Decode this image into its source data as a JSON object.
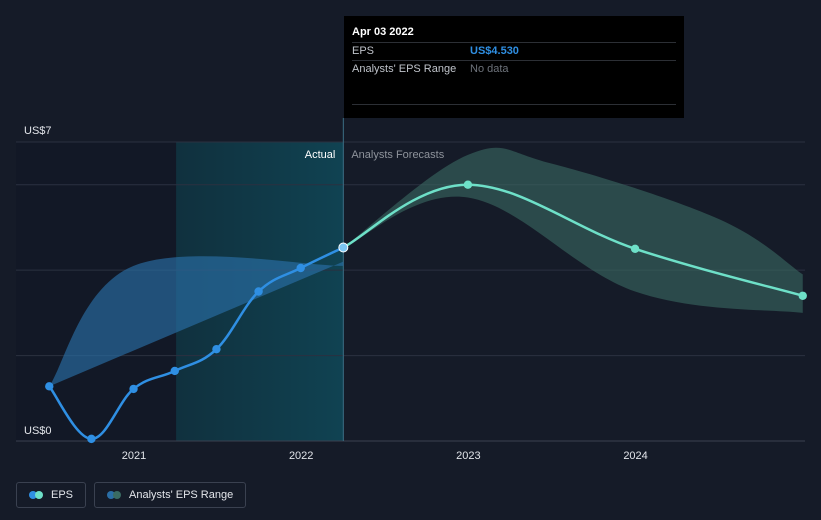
{
  "chart_data": {
    "type": "line",
    "y_axis": {
      "label_top": "US$7",
      "label_bottom": "US$0",
      "ylim": [
        0,
        7
      ]
    },
    "x_ticks": [
      "2021",
      "2022",
      "2023",
      "2024"
    ],
    "regions": {
      "actual": "Actual",
      "forecast": "Analysts Forecasts"
    },
    "series": [
      {
        "name": "EPS",
        "kind": "actual",
        "color": "#2f8fe3",
        "points": [
          [
            "2020-06-30",
            1.28
          ],
          [
            "2020-09-30",
            0.05
          ],
          [
            "2020-12-31",
            1.22
          ],
          [
            "2021-03-31",
            1.64
          ],
          [
            "2021-06-30",
            2.15
          ],
          [
            "2021-09-30",
            3.5
          ],
          [
            "2021-12-31",
            4.05
          ],
          [
            "2022-04-03",
            4.53
          ]
        ]
      },
      {
        "name": "EPS",
        "kind": "forecast",
        "color": "#6ee0c8",
        "points": [
          [
            "2022-04-03",
            4.53
          ],
          [
            "2022-12-31",
            6.0
          ],
          [
            "2023-12-31",
            4.5
          ],
          [
            "2024-12-31",
            3.4
          ]
        ]
      }
    ],
    "actual_range_band": {
      "name": "Analysts' EPS Range",
      "upper": [
        [
          "2020-06-30",
          1.28
        ],
        [
          "2020-12-31",
          4.1
        ],
        [
          "2022-04-03",
          4.1
        ]
      ],
      "lower": [
        [
          "2020-06-30",
          1.28
        ],
        [
          "2022-04-03",
          4.2
        ]
      ],
      "color": "#2a6ea6"
    },
    "forecast_range_band": {
      "name": "Analysts' EPS Range",
      "upper": [
        [
          "2022-04-03",
          4.53
        ],
        [
          "2022-12-31",
          6.7
        ],
        [
          "2023-06-30",
          6.5
        ],
        [
          "2024-06-30",
          5.2
        ],
        [
          "2024-12-31",
          3.9
        ]
      ],
      "lower": [
        [
          "2022-04-03",
          4.53
        ],
        [
          "2022-12-31",
          5.7
        ],
        [
          "2023-12-31",
          3.5
        ],
        [
          "2024-12-31",
          3.0
        ]
      ],
      "color": "#3a6b63"
    },
    "highlight_date": "2022-04-03"
  },
  "tooltip": {
    "date": "Apr 03 2022",
    "rows": [
      {
        "key": "EPS",
        "value": "US$4.530"
      },
      {
        "key": "Analysts' EPS Range",
        "value": "No data"
      }
    ]
  },
  "legend": [
    {
      "label": "EPS",
      "colors": [
        "#2f8fe3",
        "#6ee0c8"
      ]
    },
    {
      "label": "Analysts' EPS Range",
      "colors": [
        "#2a6ea6",
        "#3a6b63"
      ]
    }
  ]
}
